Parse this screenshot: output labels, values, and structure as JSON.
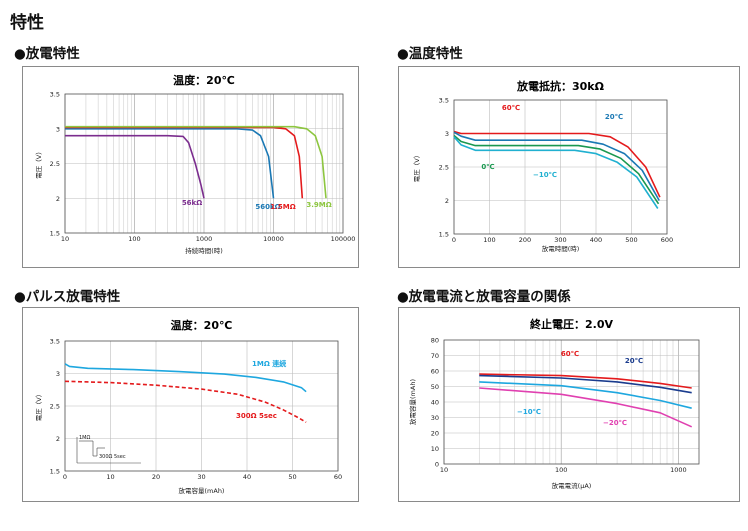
{
  "page": {
    "title": "特性"
  },
  "charts": [
    {
      "id": "discharge",
      "heading": "●放電特性",
      "chart_data": {
        "type": "line",
        "title": "温度：20℃",
        "xlabel": "持続時間(時)",
        "ylabel": "電圧（V）",
        "x_scale": "log",
        "xlim": [
          10,
          100000
        ],
        "ylim": [
          1.5,
          3.5
        ],
        "x_ticks": [
          "10",
          "100",
          "1000",
          "10000",
          "100000"
        ],
        "y_ticks": [
          "1.5",
          "2",
          "2.5",
          "3",
          "3.5"
        ],
        "grid": true,
        "series": [
          {
            "name": "56kΩ",
            "color": "#7b2d8e",
            "points": [
              [
                10,
                2.9
              ],
              [
                300,
                2.9
              ],
              [
                500,
                2.89
              ],
              [
                600,
                2.8
              ],
              [
                750,
                2.5
              ],
              [
                900,
                2.2
              ],
              [
                1000,
                2.0
              ]
            ]
          },
          {
            "name": "560kΩ",
            "color": "#1a78b4",
            "points": [
              [
                10,
                3.0
              ],
              [
                3000,
                3.0
              ],
              [
                5000,
                2.98
              ],
              [
                6500,
                2.9
              ],
              [
                8500,
                2.6
              ],
              [
                10000,
                2.0
              ]
            ]
          },
          {
            "name": "1.5MΩ",
            "color": "#e41a1c",
            "points": [
              [
                10,
                3.02
              ],
              [
                10000,
                3.02
              ],
              [
                15000,
                3.0
              ],
              [
                20000,
                2.9
              ],
              [
                23500,
                2.6
              ],
              [
                26000,
                2.0
              ]
            ]
          },
          {
            "name": "3.9MΩ",
            "color": "#8dc63f",
            "points": [
              [
                10,
                3.03
              ],
              [
                20000,
                3.03
              ],
              [
                30000,
                3.0
              ],
              [
                40000,
                2.9
              ],
              [
                50000,
                2.6
              ],
              [
                57000,
                2.0
              ]
            ]
          }
        ]
      }
    },
    {
      "id": "temperature",
      "heading": "●温度特性",
      "chart_data": {
        "type": "line",
        "title": "放電抵抗：30kΩ",
        "xlabel": "放電時間(時)",
        "ylabel": "電圧（V）",
        "xlim": [
          0,
          600
        ],
        "ylim": [
          1.5,
          3.5
        ],
        "x_ticks": [
          "0",
          "100",
          "200",
          "300",
          "400",
          "500",
          "600"
        ],
        "y_ticks": [
          "1.5",
          "2",
          "2.5",
          "3",
          "3.5"
        ],
        "grid": true,
        "series": [
          {
            "name": "60℃",
            "color": "#e41a1c",
            "points": [
              [
                0,
                3.03
              ],
              [
                20,
                3.0
              ],
              [
                380,
                3.0
              ],
              [
                440,
                2.95
              ],
              [
                490,
                2.8
              ],
              [
                540,
                2.5
              ],
              [
                580,
                2.05
              ]
            ]
          },
          {
            "name": "20℃",
            "color": "#1a78b4",
            "points": [
              [
                0,
                3.02
              ],
              [
                20,
                2.96
              ],
              [
                60,
                2.9
              ],
              [
                360,
                2.9
              ],
              [
                420,
                2.84
              ],
              [
                480,
                2.7
              ],
              [
                530,
                2.45
              ],
              [
                578,
                2.0
              ]
            ]
          },
          {
            "name": "0℃",
            "color": "#1a9850",
            "points": [
              [
                0,
                2.97
              ],
              [
                20,
                2.88
              ],
              [
                60,
                2.82
              ],
              [
                350,
                2.82
              ],
              [
                410,
                2.77
              ],
              [
                470,
                2.63
              ],
              [
                520,
                2.4
              ],
              [
                576,
                1.95
              ]
            ]
          },
          {
            "name": "−10℃",
            "color": "#20b0d0",
            "points": [
              [
                0,
                2.95
              ],
              [
                20,
                2.83
              ],
              [
                60,
                2.75
              ],
              [
                340,
                2.75
              ],
              [
                400,
                2.7
              ],
              [
                460,
                2.57
              ],
              [
                515,
                2.35
              ],
              [
                574,
                1.88
              ]
            ]
          }
        ]
      }
    },
    {
      "id": "pulse",
      "heading": "●パルス放電特性",
      "chart_data": {
        "type": "line",
        "title": "温度：20℃",
        "xlabel": "放電容量(mAh)",
        "ylabel": "電圧（V）",
        "xlim": [
          0,
          60
        ],
        "ylim": [
          1.5,
          3.5
        ],
        "x_ticks": [
          "0",
          "10",
          "20",
          "30",
          "40",
          "50",
          "60"
        ],
        "y_ticks": [
          "1.5",
          "2",
          "2.5",
          "3",
          "3.5"
        ],
        "grid": true,
        "inset_labels": [
          "1MΩ",
          "300Ω 5sec"
        ],
        "series": [
          {
            "name": "1MΩ 連続",
            "color": "#1ea7df",
            "style": "solid",
            "points": [
              [
                0,
                3.15
              ],
              [
                1,
                3.11
              ],
              [
                5,
                3.08
              ],
              [
                15,
                3.06
              ],
              [
                25,
                3.03
              ],
              [
                35,
                2.99
              ],
              [
                42,
                2.94
              ],
              [
                48,
                2.87
              ],
              [
                52,
                2.78
              ],
              [
                53,
                2.72
              ]
            ]
          },
          {
            "name": "300Ω 5sec",
            "color": "#e41a1c",
            "style": "dashed",
            "points": [
              [
                0,
                2.88
              ],
              [
                10,
                2.86
              ],
              [
                20,
                2.82
              ],
              [
                30,
                2.76
              ],
              [
                38,
                2.68
              ],
              [
                44,
                2.56
              ],
              [
                48,
                2.44
              ],
              [
                51,
                2.33
              ],
              [
                53,
                2.25
              ]
            ]
          }
        ]
      }
    },
    {
      "id": "capacity",
      "heading": "●放電電流と放電容量の関係",
      "chart_data": {
        "type": "line",
        "title": "終止電圧：2.0V",
        "xlabel": "放電電流(μA)",
        "ylabel": "放電容量(mAh)",
        "x_scale": "log",
        "xlim": [
          10,
          1500
        ],
        "ylim": [
          0,
          80
        ],
        "x_ticks": [
          "10",
          "100",
          "1000"
        ],
        "y_ticks": [
          "0",
          "10",
          "20",
          "30",
          "40",
          "50",
          "60",
          "70",
          "80"
        ],
        "grid": true,
        "series": [
          {
            "name": "60℃",
            "color": "#e41a1c",
            "points": [
              [
                20,
                58
              ],
              [
                100,
                57
              ],
              [
                300,
                55
              ],
              [
                700,
                52
              ],
              [
                1300,
                49
              ]
            ]
          },
          {
            "name": "20℃",
            "color": "#1a3c8e",
            "points": [
              [
                20,
                57
              ],
              [
                100,
                55.5
              ],
              [
                300,
                53
              ],
              [
                700,
                49.5
              ],
              [
                1300,
                46
              ]
            ]
          },
          {
            "name": "−10℃",
            "color": "#1ea7df",
            "points": [
              [
                20,
                53
              ],
              [
                100,
                50.5
              ],
              [
                300,
                46
              ],
              [
                700,
                41
              ],
              [
                1300,
                36
              ]
            ]
          },
          {
            "name": "−20℃",
            "color": "#e040b0",
            "points": [
              [
                20,
                49
              ],
              [
                100,
                45
              ],
              [
                300,
                39
              ],
              [
                700,
                33
              ],
              [
                1300,
                24
              ]
            ]
          }
        ]
      }
    }
  ]
}
